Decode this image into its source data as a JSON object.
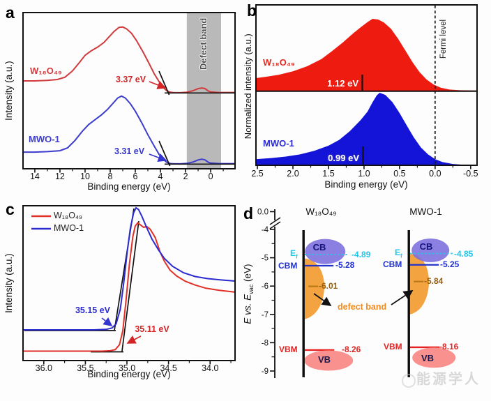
{
  "figure": {
    "watermark": "能源学人"
  },
  "panels": {
    "a": {
      "letter": "a",
      "ylabel": "Intensity (a.u.)",
      "xlabel": "Binding energy (eV)",
      "x_ticks": [
        "14",
        "12",
        "10",
        "8",
        "6",
        "4",
        "2",
        "0"
      ],
      "band_label": "Defect band",
      "label_red": "W₁₈O₄₉",
      "label_blue": "MWO-1",
      "ann_red": "3.37 eV",
      "ann_blue": "3.31 eV"
    },
    "b": {
      "letter": "b",
      "ylabel": "Normalized intensity (a.u.)",
      "xlabel": "Binding energy (eV)",
      "x_ticks": [
        "2.5",
        "2.0",
        "1.5",
        "1.0",
        "0.5",
        "0.0",
        "-0.5"
      ],
      "label_red": "W₁₈O₄₉",
      "label_blue": "MWO-1",
      "ann_red": "1.12 eV",
      "ann_blue": "0.99 eV",
      "fermi_label": "Fermi level"
    },
    "c": {
      "letter": "c",
      "ylabel": "Intensity (a.u.)",
      "xlabel": "Binding energy (eV)",
      "x_ticks": [
        "36.0",
        "35.5",
        "35.0",
        "34.5",
        "34.0"
      ],
      "legend": [
        {
          "label": "W₁₈O₄₉"
        },
        {
          "label": "MWO-1"
        }
      ],
      "ann_blue": "35.15 eV",
      "ann_red": "35.11 eV"
    },
    "d": {
      "letter": "d",
      "y_ticks": [
        "0.0",
        "-4",
        "-5",
        "-6",
        "-7",
        "-8",
        "-9"
      ],
      "ylabel_parts": {
        "e1": "E",
        "vs": " vs. ",
        "e2": "E",
        "sub": "vac",
        "unit": " (eV)"
      },
      "defect_label": "defect band",
      "columns": [
        {
          "title": "W₁₈O₄₉",
          "ef_main": "E",
          "ef_sub": "f",
          "ef_value": "-4.89",
          "cb": "CB",
          "cbm": "CBM",
          "cbm_value": "-5.28",
          "defect_value": "-6.01",
          "vbm": "VBM",
          "vbm_value": "-8.26",
          "vb": "VB"
        },
        {
          "title": "MWO-1",
          "ef_main": "E",
          "ef_sub": "f",
          "ef_value": "-4.85",
          "cb": "CB",
          "cbm": "CBM",
          "cbm_value": "-5.25",
          "defect_value": "-5.84",
          "vbm": "VBM",
          "vbm_value": "-8.16",
          "vb": "VB"
        }
      ]
    }
  },
  "chart_data": [
    {
      "panel": "a",
      "type": "line",
      "title": "Valence-band spectra",
      "xlabel": "Binding energy (eV)",
      "ylabel": "Intensity (a.u.)",
      "xlim": [
        14.94,
        -1.94
      ],
      "x_ticks": [
        14,
        12,
        10,
        8,
        6,
        4,
        2,
        0
      ],
      "x_axis_reversed": true,
      "grid": false,
      "band_region_eV": [
        1.9,
        -0.83
      ],
      "series": [
        {
          "name": "W₁₈O₄₉",
          "color": "#cf3a3c",
          "onset_eV": 3.37,
          "points": [
            [
              14.94,
              0.13
            ],
            [
              14,
              0.13
            ],
            [
              13,
              0.135
            ],
            [
              12.2,
              0.145
            ],
            [
              11.6,
              0.17
            ],
            [
              11,
              0.24
            ],
            [
              10.4,
              0.34
            ],
            [
              10,
              0.41
            ],
            [
              9.5,
              0.46
            ],
            [
              9,
              0.5
            ],
            [
              8.5,
              0.55
            ],
            [
              8.1,
              0.61
            ],
            [
              7.7,
              0.67
            ],
            [
              7.3,
              0.715
            ],
            [
              7,
              0.72
            ],
            [
              6.7,
              0.7
            ],
            [
              6.3,
              0.65
            ],
            [
              5.9,
              0.57
            ],
            [
              5.4,
              0.45
            ],
            [
              4.9,
              0.32
            ],
            [
              4.5,
              0.21
            ],
            [
              4.1,
              0.12
            ],
            [
              3.8,
              0.06
            ],
            [
              3.5,
              0.022
            ],
            [
              3.2,
              0.005
            ],
            [
              2.9,
              0.001
            ],
            [
              2.4,
              0.001
            ],
            [
              1.9,
              0.006
            ],
            [
              1.4,
              0.022
            ],
            [
              1,
              0.045
            ],
            [
              0.7,
              0.053
            ],
            [
              0.45,
              0.045
            ],
            [
              0.2,
              0.02
            ],
            [
              0,
              0.01
            ],
            [
              -0.5,
              0.004
            ],
            [
              -1,
              0.003
            ],
            [
              -1.94,
              0.003
            ]
          ]
        },
        {
          "name": "MWO-1",
          "color": "#3c3ccc",
          "onset_eV": 3.31,
          "points": [
            [
              14.94,
              0.125
            ],
            [
              14,
              0.125
            ],
            [
              13,
              0.13
            ],
            [
              12,
              0.14
            ],
            [
              11.4,
              0.17
            ],
            [
              10.8,
              0.25
            ],
            [
              10.2,
              0.35
            ],
            [
              9.7,
              0.42
            ],
            [
              9.2,
              0.47
            ],
            [
              8.7,
              0.52
            ],
            [
              8.2,
              0.58
            ],
            [
              7.8,
              0.64
            ],
            [
              7.4,
              0.7
            ],
            [
              7.1,
              0.72
            ],
            [
              6.8,
              0.7
            ],
            [
              6.4,
              0.64
            ],
            [
              6,
              0.56
            ],
            [
              5.5,
              0.44
            ],
            [
              5,
              0.31
            ],
            [
              4.5,
              0.19
            ],
            [
              4.1,
              0.1
            ],
            [
              3.8,
              0.05
            ],
            [
              3.5,
              0.018
            ],
            [
              3.2,
              0.004
            ],
            [
              2.9,
              0.001
            ],
            [
              2.4,
              0.001
            ],
            [
              1.9,
              0.005
            ],
            [
              1.4,
              0.02
            ],
            [
              1,
              0.042
            ],
            [
              0.7,
              0.05
            ],
            [
              0.45,
              0.042
            ],
            [
              0.2,
              0.018
            ],
            [
              0,
              0.009
            ],
            [
              -0.6,
              0.004
            ],
            [
              -1.94,
              0.003
            ]
          ]
        }
      ]
    },
    {
      "panel": "b",
      "type": "area",
      "title": "Near-Fermi-level spectra",
      "xlabel": "Binding energy (eV)",
      "ylabel": "Normalized intensity (a.u.)",
      "xlim": [
        2.52,
        -0.59
      ],
      "x_ticks": [
        2.5,
        2.0,
        1.5,
        1.0,
        0.5,
        0.0,
        -0.5
      ],
      "x_axis_reversed": true,
      "grid": false,
      "fermi_level_eV": 0.0,
      "series": [
        {
          "name": "W₁₈O₄₉",
          "color": "#ee1b10",
          "centroid_eV": 1.12,
          "points": [
            [
              2.52,
              0.175
            ],
            [
              2.4,
              0.19
            ],
            [
              2.2,
              0.22
            ],
            [
              2,
              0.27
            ],
            [
              1.8,
              0.34
            ],
            [
              1.6,
              0.44
            ],
            [
              1.45,
              0.55
            ],
            [
              1.3,
              0.67
            ],
            [
              1.15,
              0.8
            ],
            [
              1.05,
              0.88
            ],
            [
              0.95,
              0.955
            ],
            [
              0.88,
              1
            ],
            [
              0.8,
              0.99
            ],
            [
              0.72,
              0.95
            ],
            [
              0.62,
              0.86
            ],
            [
              0.52,
              0.72
            ],
            [
              0.42,
              0.56
            ],
            [
              0.32,
              0.4
            ],
            [
              0.22,
              0.26
            ],
            [
              0.12,
              0.155
            ],
            [
              0.02,
              0.085
            ],
            [
              -0.08,
              0.042
            ],
            [
              -0.2,
              0.016
            ],
            [
              -0.35,
              0.006
            ],
            [
              -0.59,
              0.002
            ]
          ]
        },
        {
          "name": "MWO-1",
          "color": "#1414d9",
          "centroid_eV": 0.99,
          "points": [
            [
              2.52,
              0.085
            ],
            [
              2.3,
              0.1
            ],
            [
              2.1,
              0.12
            ],
            [
              1.9,
              0.15
            ],
            [
              1.7,
              0.2
            ],
            [
              1.5,
              0.27
            ],
            [
              1.35,
              0.35
            ],
            [
              1.2,
              0.47
            ],
            [
              1.05,
              0.62
            ],
            [
              0.95,
              0.74
            ],
            [
              0.88,
              0.87
            ],
            [
              0.82,
              0.965
            ],
            [
              0.78,
              1
            ],
            [
              0.7,
              0.97
            ],
            [
              0.6,
              0.87
            ],
            [
              0.5,
              0.72
            ],
            [
              0.4,
              0.55
            ],
            [
              0.3,
              0.385
            ],
            [
              0.2,
              0.245
            ],
            [
              0.1,
              0.15
            ],
            [
              0,
              0.085
            ],
            [
              -0.1,
              0.045
            ],
            [
              -0.25,
              0.018
            ],
            [
              -0.4,
              0.007
            ],
            [
              -0.59,
              0.002
            ]
          ]
        }
      ]
    },
    {
      "panel": "c",
      "type": "line",
      "title": "Secondary-electron cutoff",
      "xlabel": "Binding energy (eV)",
      "ylabel": "Intensity (a.u.)",
      "xlim": [
        36.25,
        33.7
      ],
      "x_ticks": [
        36.0,
        35.5,
        35.0,
        34.5,
        34.0
      ],
      "x_axis_reversed": true,
      "grid": false,
      "series": [
        {
          "name": "W₁₈O₄₉",
          "color": "#e03028",
          "cutoff_eV": 35.11,
          "points": [
            [
              36.25,
              0
            ],
            [
              35.9,
              0
            ],
            [
              35.5,
              0
            ],
            [
              35.3,
              0
            ],
            [
              35.2,
              0.003
            ],
            [
              35.14,
              0.012
            ],
            [
              35.09,
              0.05
            ],
            [
              35.05,
              0.16
            ],
            [
              35.01,
              0.4
            ],
            [
              34.97,
              0.68
            ],
            [
              34.93,
              0.89
            ],
            [
              34.9,
              0.975
            ],
            [
              34.87,
              1
            ],
            [
              34.84,
              0.985
            ],
            [
              34.8,
              0.965
            ],
            [
              34.76,
              0.97
            ],
            [
              34.72,
              0.95
            ],
            [
              34.66,
              0.885
            ],
            [
              34.6,
              0.77
            ],
            [
              34.55,
              0.7
            ],
            [
              34.48,
              0.63
            ],
            [
              34.4,
              0.585
            ],
            [
              34.3,
              0.545
            ],
            [
              34.18,
              0.515
            ],
            [
              34.05,
              0.49
            ],
            [
              33.9,
              0.475
            ],
            [
              33.7,
              0.46
            ]
          ]
        },
        {
          "name": "MWO-1",
          "color": "#2b2bd0",
          "cutoff_eV": 35.15,
          "points": [
            [
              36.25,
              0
            ],
            [
              36,
              0
            ],
            [
              35.7,
              0
            ],
            [
              35.4,
              0
            ],
            [
              35.25,
              0.004
            ],
            [
              35.18,
              0.015
            ],
            [
              35.13,
              0.05
            ],
            [
              35.08,
              0.17
            ],
            [
              35.04,
              0.38
            ],
            [
              35,
              0.62
            ],
            [
              34.96,
              0.83
            ],
            [
              34.92,
              0.96
            ],
            [
              34.89,
              1
            ],
            [
              34.86,
              0.985
            ],
            [
              34.82,
              0.93
            ],
            [
              34.77,
              0.85
            ],
            [
              34.7,
              0.745
            ],
            [
              34.62,
              0.655
            ],
            [
              34.55,
              0.585
            ],
            [
              34.45,
              0.52
            ],
            [
              34.32,
              0.468
            ],
            [
              34.18,
              0.437
            ],
            [
              34.03,
              0.42
            ],
            [
              33.88,
              0.41
            ],
            [
              33.7,
              0.4
            ]
          ]
        }
      ]
    },
    {
      "panel": "d",
      "type": "energy-level-diagram",
      "title": "Band alignment vs vacuum level",
      "ylabel": "E vs. Evac (eV)",
      "ylim": [
        0,
        -9
      ],
      "y_ticks": [
        0.0,
        -4,
        -5,
        -6,
        -7,
        -8,
        -9
      ],
      "axis_break": [
        0,
        -4
      ],
      "columns": [
        {
          "name": "W₁₈O₄₉",
          "E_f": -4.89,
          "CBM": -5.28,
          "defect_band": -6.01,
          "VBM": -8.26
        },
        {
          "name": "MWO-1",
          "E_f": -4.85,
          "CBM": -5.25,
          "defect_band": -5.84,
          "VBM": -8.16
        }
      ],
      "colors": {
        "cb_fill": "#7b6ede",
        "defect_fill": "#f4a341",
        "vb_fill": "#f9918e",
        "ef": "#25c6e8",
        "cbm": "#2233cc",
        "vbm": "#e82222",
        "defect_text": "#96600f",
        "defect_label": "#f08c1e"
      }
    }
  ]
}
